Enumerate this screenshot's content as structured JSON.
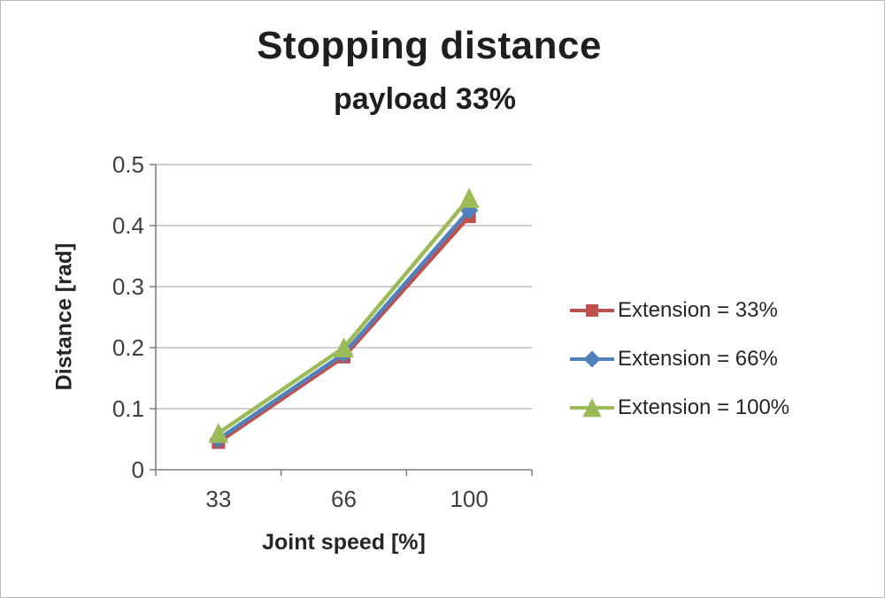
{
  "chart_data": {
    "type": "line",
    "title": "Stopping distance",
    "subtitle": "payload 33%",
    "xlabel": "Joint speed [%]",
    "ylabel": "Distance [rad]",
    "categories": [
      "33",
      "66",
      "100"
    ],
    "ylim": [
      0,
      0.5
    ],
    "yticks": [
      "0",
      "0.1",
      "0.2",
      "0.3",
      "0.4",
      "0.5"
    ],
    "grid": true,
    "legend_position": "right",
    "grid_color": "#bfbfbf",
    "axis_color": "#7f7f7f",
    "series": [
      {
        "name": "Extension = 33%",
        "marker": "square",
        "color": "#c0504d",
        "values": [
          0.045,
          0.185,
          0.415
        ]
      },
      {
        "name": "Extension = 66%",
        "marker": "diamond",
        "color": "#4f81bd",
        "values": [
          0.05,
          0.19,
          0.425
        ]
      },
      {
        "name": "Extension = 100%",
        "marker": "triangle",
        "color": "#9bbb59",
        "values": [
          0.06,
          0.2,
          0.445
        ]
      }
    ]
  }
}
